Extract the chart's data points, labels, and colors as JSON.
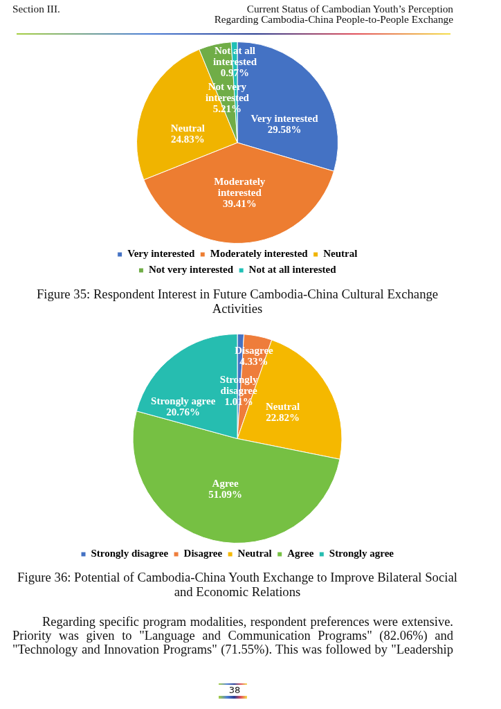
{
  "chart_data": [
    {
      "type": "pie",
      "categories": [
        "Very interested",
        "Moderately interested",
        "Neutral",
        "Not very interested",
        "Not at all interested"
      ],
      "values": [
        29.58,
        39.41,
        24.83,
        5.21,
        0.97
      ],
      "colors": [
        "#4472c4",
        "#ed7d31",
        "#f0b400",
        "#70ad47",
        "#20c0b6"
      ],
      "value_labels": [
        "29.58%",
        "39.41%",
        "24.83%",
        "5.21%",
        "0.97%"
      ],
      "legend": "bottom",
      "annotations": [
        "Section III.",
        "Current Status of Cambodian Youth’s Perception",
        "Regarding Cambodia-China People-to-People Exchange",
        "Figure 35: Respondent Interest in Future Cambodia-China Cultural Exchange Activities"
      ]
    },
    {
      "type": "pie",
      "categories": [
        "Strongly disagree",
        "Disagree",
        "Neutral",
        "Agree",
        "Strongly agree"
      ],
      "values": [
        1.01,
        4.33,
        22.82,
        51.09,
        20.76
      ],
      "colors": [
        "#4472c4",
        "#ee7d3b",
        "#f5b800",
        "#76c043",
        "#26bdb0"
      ],
      "value_labels": [
        "1.01%",
        "4.33%",
        "22.82%",
        "51.09%",
        "20.76%"
      ],
      "legend": "bottom",
      "annotations": [
        "Figure 36: Potential of Cambodia-China Youth Exchange to Improve Bilateral Social and Economic Relations",
        "Regarding specific program modalities, respondent preferences were extensive. Priority was given to \"Language and Communication Programs\" (82.06%) and \"Technology and Innovation Programs\" (71.55%). This was followed by \"Leadership",
        "38"
      ]
    }
  ]
}
